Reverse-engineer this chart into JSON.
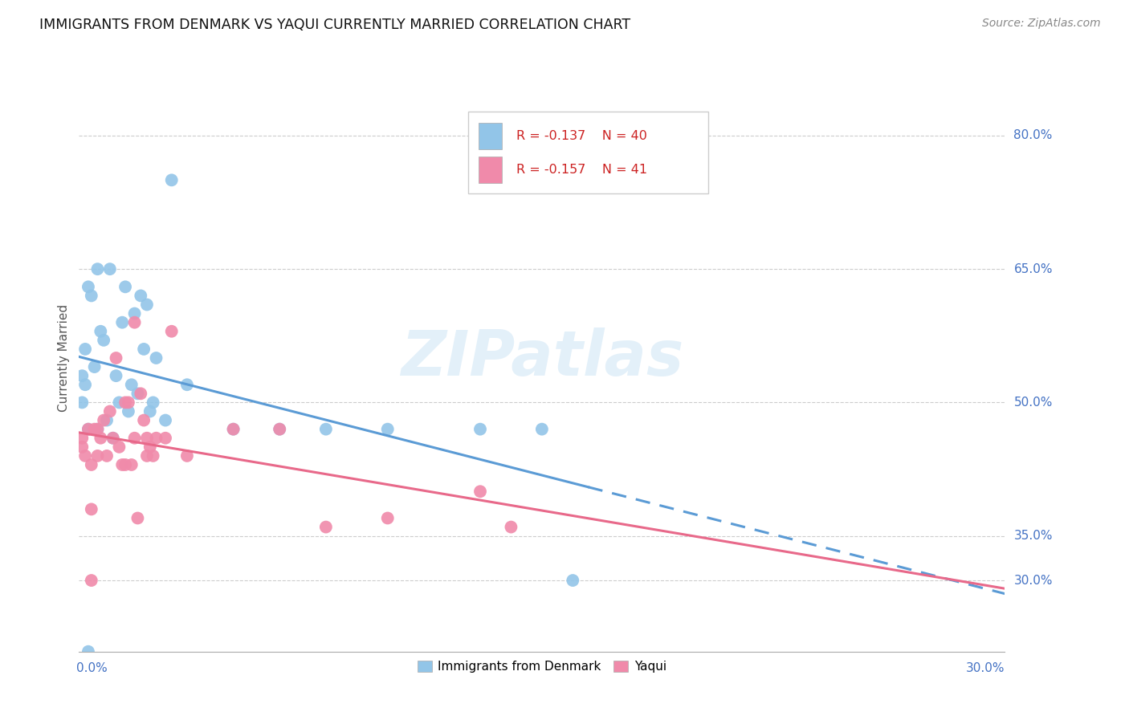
{
  "title": "IMMIGRANTS FROM DENMARK VS YAQUI CURRENTLY MARRIED CORRELATION CHART",
  "source": "Source: ZipAtlas.com",
  "ylabel": "Currently Married",
  "xlim": [
    0.0,
    0.3
  ],
  "ylim": [
    0.22,
    0.88
  ],
  "legend_r1": "R = -0.137",
  "legend_n1": "N = 40",
  "legend_r2": "R = -0.157",
  "legend_n2": "N = 41",
  "color_blue": "#92c5e8",
  "color_pink": "#f08aaa",
  "trend_blue": "#5b9bd5",
  "trend_pink": "#e8698a",
  "watermark": "ZIPatlas",
  "grid_vals": [
    0.8,
    0.65,
    0.5,
    0.35,
    0.3
  ],
  "right_labels": [
    "80.0%",
    "65.0%",
    "50.0%",
    "35.0%",
    "30.0%"
  ],
  "blue_scatter_x": [
    0.001,
    0.001,
    0.002,
    0.002,
    0.003,
    0.003,
    0.004,
    0.005,
    0.006,
    0.006,
    0.007,
    0.008,
    0.009,
    0.01,
    0.011,
    0.012,
    0.013,
    0.014,
    0.015,
    0.016,
    0.017,
    0.018,
    0.019,
    0.02,
    0.021,
    0.022,
    0.023,
    0.024,
    0.025,
    0.028,
    0.03,
    0.035,
    0.05,
    0.065,
    0.08,
    0.1,
    0.13,
    0.15,
    0.003,
    0.16
  ],
  "blue_scatter_y": [
    0.5,
    0.53,
    0.52,
    0.56,
    0.63,
    0.47,
    0.62,
    0.54,
    0.65,
    0.47,
    0.58,
    0.57,
    0.48,
    0.65,
    0.46,
    0.53,
    0.5,
    0.59,
    0.63,
    0.49,
    0.52,
    0.6,
    0.51,
    0.62,
    0.56,
    0.61,
    0.49,
    0.5,
    0.55,
    0.48,
    0.75,
    0.52,
    0.47,
    0.47,
    0.47,
    0.47,
    0.47,
    0.47,
    0.22,
    0.3
  ],
  "pink_scatter_x": [
    0.001,
    0.001,
    0.002,
    0.003,
    0.004,
    0.004,
    0.005,
    0.006,
    0.006,
    0.007,
    0.008,
    0.009,
    0.01,
    0.011,
    0.012,
    0.013,
    0.014,
    0.015,
    0.016,
    0.017,
    0.018,
    0.019,
    0.02,
    0.021,
    0.022,
    0.023,
    0.024,
    0.025,
    0.028,
    0.03,
    0.035,
    0.05,
    0.065,
    0.08,
    0.1,
    0.13,
    0.14,
    0.015,
    0.018,
    0.022,
    0.004
  ],
  "pink_scatter_y": [
    0.45,
    0.46,
    0.44,
    0.47,
    0.38,
    0.43,
    0.47,
    0.47,
    0.44,
    0.46,
    0.48,
    0.44,
    0.49,
    0.46,
    0.55,
    0.45,
    0.43,
    0.5,
    0.5,
    0.43,
    0.59,
    0.37,
    0.51,
    0.48,
    0.44,
    0.45,
    0.44,
    0.46,
    0.46,
    0.58,
    0.44,
    0.47,
    0.47,
    0.36,
    0.37,
    0.4,
    0.36,
    0.43,
    0.46,
    0.46,
    0.3
  ]
}
